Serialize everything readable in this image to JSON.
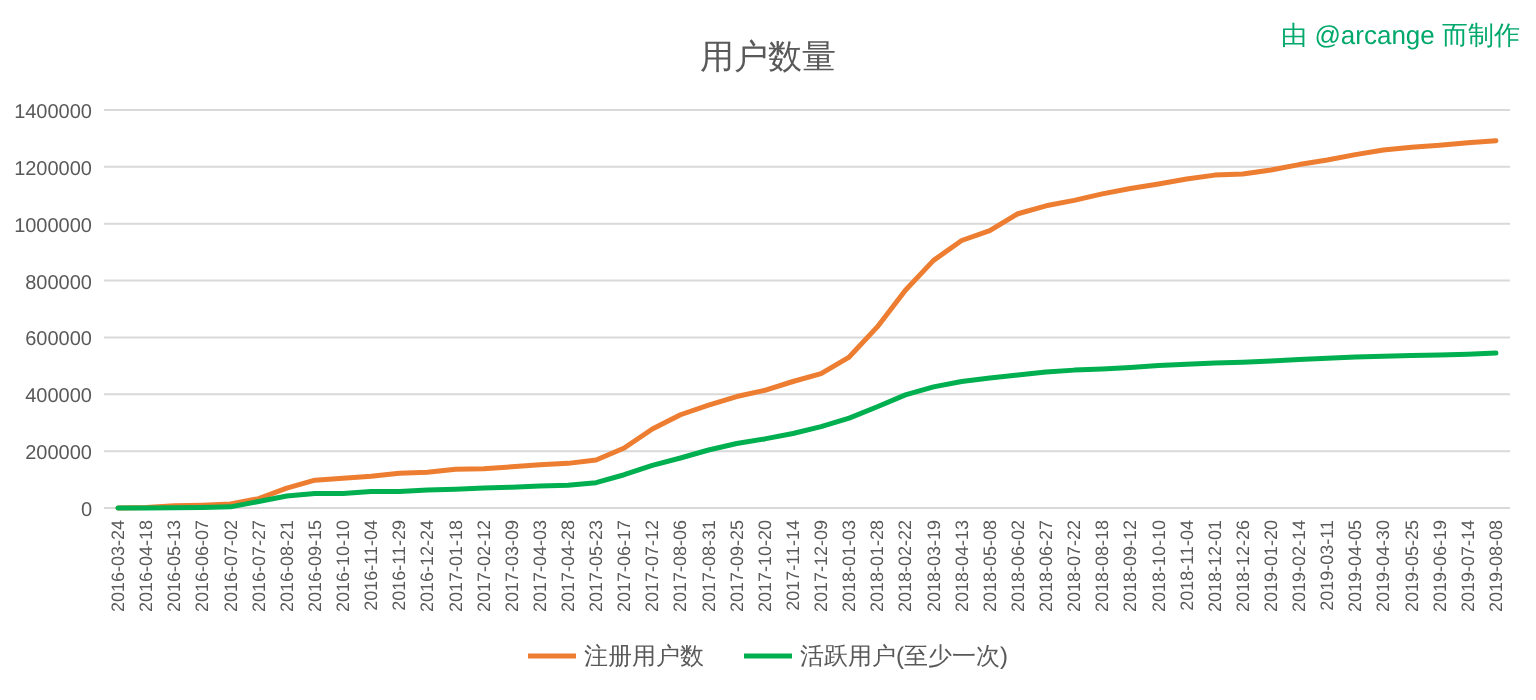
{
  "chart_data": {
    "type": "line",
    "title": "用户数量",
    "annotations": [
      "由 @arcange 而制作"
    ],
    "categories": [
      "2016-03-24",
      "2016-04-18",
      "2016-05-13",
      "2016-06-07",
      "2016-07-02",
      "2016-07-27",
      "2016-08-21",
      "2016-09-15",
      "2016-10-10",
      "2016-11-04",
      "2016-11-29",
      "2016-12-24",
      "2017-01-18",
      "2017-02-12",
      "2017-03-09",
      "2017-04-03",
      "2017-04-28",
      "2017-05-23",
      "2017-06-17",
      "2017-07-12",
      "2017-08-06",
      "2017-08-31",
      "2017-09-25",
      "2017-10-20",
      "2017-11-14",
      "2017-12-09",
      "2018-01-03",
      "2018-01-28",
      "2018-02-22",
      "2018-03-19",
      "2018-04-13",
      "2018-05-08",
      "2018-06-02",
      "2018-06-27",
      "2018-07-22",
      "2018-08-18",
      "2018-09-12",
      "2018-10-10",
      "2018-11-04",
      "2018-12-01",
      "2018-12-26",
      "2019-01-20",
      "2019-02-14",
      "2019-03-11",
      "2019-04-05",
      "2019-04-30",
      "2019-05-25",
      "2019-06-19",
      "2019-07-14",
      "2019-08-08"
    ],
    "series": [
      {
        "name": "注册用户数",
        "color": "#ed7d31",
        "values": [
          0,
          2000,
          8000,
          10000,
          14000,
          33000,
          70000,
          98000,
          105000,
          112000,
          122000,
          126000,
          136000,
          138000,
          145000,
          152000,
          157000,
          169000,
          211000,
          278000,
          328000,
          362000,
          392000,
          414000,
          445000,
          473000,
          531000,
          637000,
          766000,
          871000,
          941000,
          976000,
          1035000,
          1063000,
          1082000,
          1105000,
          1124000,
          1140000,
          1157000,
          1171000,
          1175000,
          1189000,
          1208000,
          1224000,
          1243000,
          1259000,
          1269000,
          1276000,
          1285000,
          1292000
        ]
      },
      {
        "name": "活跃用户(至少一次)",
        "color": "#00b050",
        "values": [
          0,
          0,
          1000,
          2000,
          4000,
          23000,
          42000,
          51000,
          51000,
          58000,
          58000,
          63000,
          66000,
          70000,
          73000,
          77000,
          80000,
          89000,
          117000,
          150000,
          176000,
          204000,
          227000,
          243000,
          262000,
          286000,
          316000,
          356000,
          398000,
          426000,
          445000,
          457000,
          468000,
          478000,
          485000,
          489000,
          494000,
          501000,
          506000,
          510000,
          513000,
          517000,
          522000,
          527000,
          531000,
          534000,
          536000,
          538000,
          541000,
          545000
        ]
      }
    ],
    "ylim": [
      0,
      1400000
    ],
    "yticks": [
      0,
      200000,
      400000,
      600000,
      800000,
      1000000,
      1200000,
      1400000
    ],
    "grid": "y",
    "legend": "bottom"
  }
}
